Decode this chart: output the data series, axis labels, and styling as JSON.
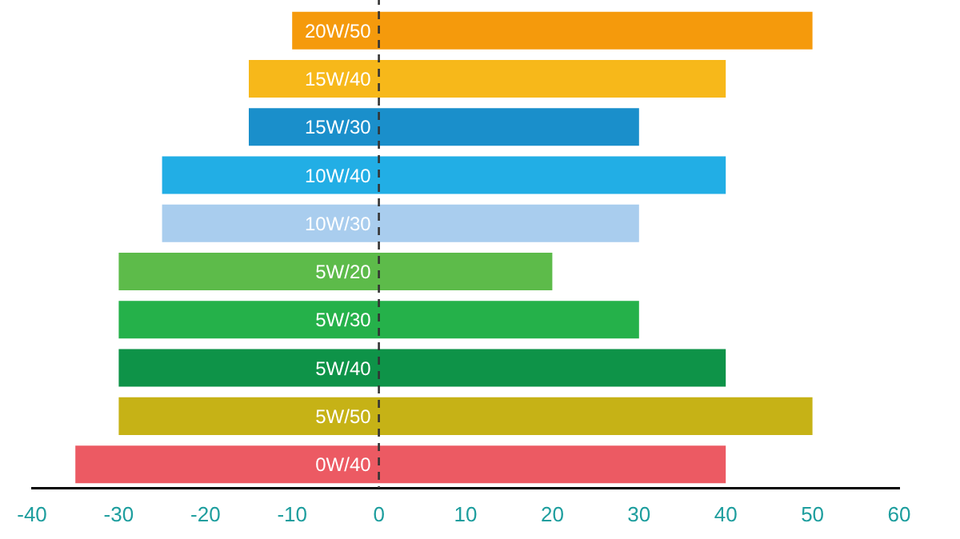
{
  "chart_data": {
    "type": "bar",
    "orientation": "horizontal",
    "categories": [
      "20W/50",
      "15W/40",
      "15W/30",
      "10W/40",
      "10W/30",
      "5W/20",
      "5W/30",
      "5W/40",
      "5W/50",
      "0W/40"
    ],
    "base": [
      -10,
      -15,
      -15,
      -25,
      -25,
      -30,
      -30,
      -30,
      -30,
      -35
    ],
    "values": [
      60,
      55,
      45,
      65,
      55,
      50,
      60,
      70,
      80,
      75
    ],
    "colors": [
      "#f59a0c",
      "#f7b81a",
      "#1a8fcb",
      "#22aee5",
      "#a9cdee",
      "#5dbb4a",
      "#25b14a",
      "#0e9348",
      "#c6b216",
      "#ec5a63"
    ],
    "xlim": [
      -40,
      60
    ],
    "xticks": [
      -40,
      -30,
      -20,
      -10,
      0,
      10,
      20,
      30,
      40,
      50,
      60
    ],
    "ref_lines": [
      {
        "axis": "x",
        "value": 0,
        "line_style": "dashed",
        "color": "#333333"
      }
    ],
    "grid": false,
    "legend": false
  }
}
